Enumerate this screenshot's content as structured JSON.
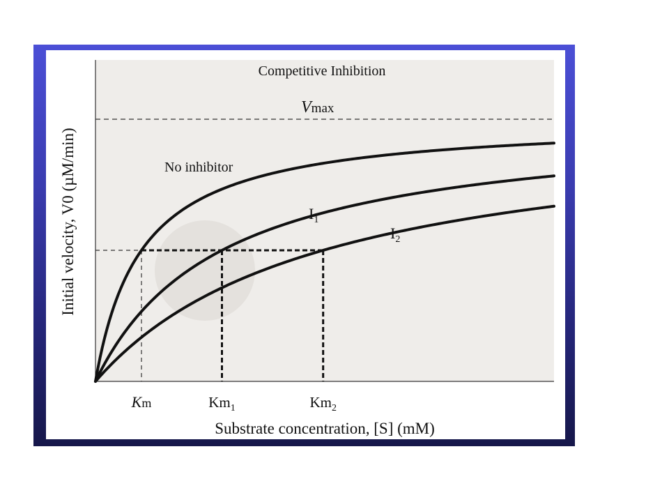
{
  "chart_data": {
    "type": "line",
    "title": "Competitive Inhibition",
    "xlabel": "Substrate concentration, [S] (mM)",
    "ylabel": "Initial velocity, V0 (µM/min)",
    "vmax_label": "V",
    "vmax_sub": "max",
    "vmax": 1.0,
    "half_vmax": 0.5,
    "xlim": [
      0,
      10
    ],
    "ylim": [
      0,
      1.2
    ],
    "grid": false,
    "colors": {
      "background": "#efedea",
      "curve": "#111111",
      "frame": "#3a3cb0"
    },
    "series": [
      {
        "name": "No inhibitor",
        "km": 1.0
      },
      {
        "name": "I1",
        "label_main": "I",
        "label_sub": "1",
        "km": 2.75
      },
      {
        "name": "I2",
        "label_main": "I",
        "label_sub": "2",
        "km": 4.95
      }
    ],
    "km_ticks": [
      {
        "main": "K",
        "sub": "m",
        "value": 1.0
      },
      {
        "main": "Km",
        "sub": "1",
        "value": 2.75
      },
      {
        "main": "Km",
        "sub": "2",
        "value": 4.95
      }
    ]
  }
}
